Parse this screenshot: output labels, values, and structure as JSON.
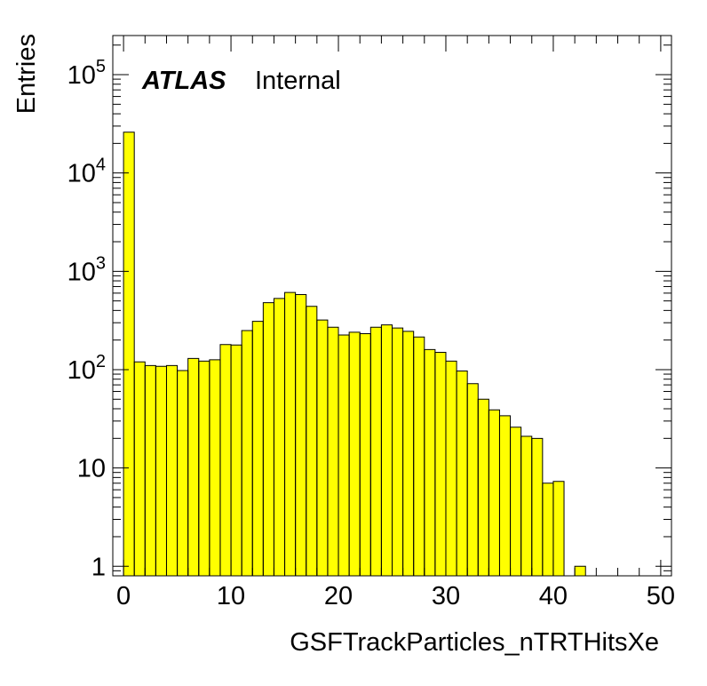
{
  "chart_data": {
    "type": "bar",
    "title": "",
    "xlabel": "GSFTrackParticles_nTRTHitsXe",
    "ylabel": "Entries",
    "label_bold": "ATLAS",
    "label_normal": "Internal",
    "xlim": [
      -1,
      51
    ],
    "ylim": [
      0.8,
      250000
    ],
    "yscale": "log",
    "bin_width": 1,
    "bin_low_edges": [
      0,
      1,
      2,
      3,
      4,
      5,
      6,
      7,
      8,
      9,
      10,
      11,
      12,
      13,
      14,
      15,
      16,
      17,
      18,
      19,
      20,
      21,
      22,
      23,
      24,
      25,
      26,
      27,
      28,
      29,
      30,
      31,
      32,
      33,
      34,
      35,
      36,
      37,
      38,
      39,
      40,
      41,
      42
    ],
    "values": [
      26000,
      120,
      110,
      108,
      110,
      98,
      130,
      122,
      126,
      180,
      178,
      250,
      310,
      480,
      530,
      610,
      580,
      440,
      320,
      270,
      225,
      240,
      232,
      270,
      285,
      265,
      245,
      215,
      160,
      150,
      122,
      97,
      72,
      50,
      39,
      34,
      26,
      21,
      20,
      7,
      7.3,
      0,
      1
    ],
    "fill_color": "#ffff00",
    "x_ticks": [
      "0",
      "10",
      "20",
      "30",
      "40",
      "50"
    ],
    "y_tick_labels": [
      {
        "value": 1,
        "base": "1",
        "exp": ""
      },
      {
        "value": 10,
        "base": "10",
        "exp": ""
      },
      {
        "value": 100,
        "base": "10",
        "exp": "2"
      },
      {
        "value": 1000,
        "base": "10",
        "exp": "3"
      },
      {
        "value": 10000,
        "base": "10",
        "exp": "4"
      },
      {
        "value": 100000,
        "base": "10",
        "exp": "5"
      }
    ],
    "grid": false,
    "legend": "none"
  }
}
